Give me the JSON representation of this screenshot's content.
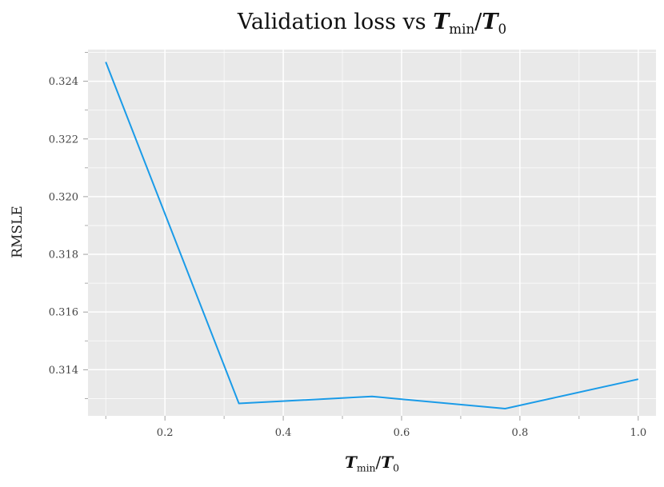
{
  "title": {
    "prefix": "Validation loss vs ",
    "sym": "T",
    "sub": "min",
    "slash": "/",
    "sym2": "T",
    "sub2": "0"
  },
  "xlabel": {
    "sym": "T",
    "sub": "min",
    "slash": "/",
    "sym2": "T",
    "sub2": "0"
  },
  "ylabel": "RMSLE",
  "colors": {
    "line": "#1a9be8",
    "panel": "#e9e9e9",
    "grid": "#ffffff"
  },
  "chart_data": {
    "type": "line",
    "title": "Validation loss vs T_min/T_0",
    "xlabel": "T_min/T_0",
    "ylabel": "RMSLE",
    "x": [
      0.1,
      0.325,
      0.55,
      0.775,
      1.0
    ],
    "series": [
      {
        "values": [
          0.32467,
          0.31283,
          0.31307,
          0.31265,
          0.31367
        ]
      }
    ],
    "xlim": [
      0.07,
      1.03
    ],
    "ylim": [
      0.3124,
      0.3251
    ],
    "xticks": [
      0.2,
      0.4,
      0.6,
      0.8,
      1.0
    ],
    "xtick_labels": [
      "0.2",
      "0.4",
      "0.6",
      "0.8",
      "1.0"
    ],
    "yticks": [
      0.314,
      0.316,
      0.318,
      0.32,
      0.322,
      0.324
    ],
    "ytick_labels": [
      "0.314",
      "0.316",
      "0.318",
      "0.320",
      "0.322",
      "0.324"
    ],
    "grid": true,
    "legend": "none"
  }
}
